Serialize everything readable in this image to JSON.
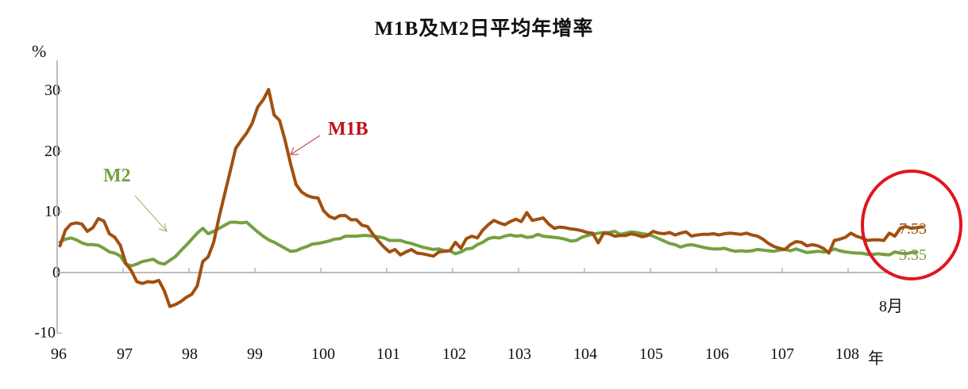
{
  "title": "M1B及M2日平均年增率",
  "y_unit": "%",
  "x_unit": "年",
  "last_month_label": "8月",
  "colors": {
    "m1b": "#A0500F",
    "m2": "#76A040",
    "m1b_label": "#C0101A",
    "m2_label": "#76A040",
    "axis": "#A6A6A6",
    "highlight_circle": "#E0151F"
  },
  "annotations": {
    "m1b_label": "M1B",
    "m2_label": "M2",
    "m1b_end_value": "7.53",
    "m2_end_value": "3.35"
  },
  "chart_data": {
    "type": "line",
    "title": "M1B及M2日平均年增率",
    "xlabel": "年",
    "ylabel": "%",
    "ylim": [
      -10,
      35
    ],
    "yticks": [
      -10,
      0,
      10,
      20,
      30
    ],
    "xticks": [
      "96",
      "97",
      "98",
      "99",
      "100",
      "101",
      "102",
      "103",
      "104",
      "105",
      "106",
      "107",
      "108"
    ],
    "x_range": "96年1月 - 108年8月 (monthly)",
    "grid": false,
    "legend": "inline labels with arrows",
    "series": [
      {
        "name": "M1B",
        "values": [
          4.4,
          7.0,
          8.0,
          8.2,
          8.0,
          6.8,
          7.4,
          8.9,
          8.5,
          6.4,
          5.8,
          4.5,
          1.5,
          0.3,
          -1.5,
          -1.8,
          -1.5,
          -1.6,
          -1.3,
          -3.0,
          -5.6,
          -5.3,
          -4.8,
          -4.1,
          -3.6,
          -2.2,
          1.8,
          2.6,
          5.0,
          9.2,
          13.0,
          16.7,
          20.5,
          21.8,
          23.0,
          24.6,
          27.3,
          28.5,
          30.2,
          26.0,
          25.1,
          21.8,
          17.9,
          14.5,
          13.3,
          12.7,
          12.4,
          12.3,
          10.2,
          9.3,
          8.9,
          9.4,
          9.4,
          8.7,
          8.7,
          7.8,
          7.6,
          6.3,
          5.2,
          4.2,
          3.4,
          3.8,
          2.9,
          3.4,
          3.8,
          3.2,
          3.1,
          2.9,
          2.7,
          3.4,
          3.5,
          3.6,
          5.0,
          4.0,
          5.6,
          6.0,
          5.7,
          7.0,
          7.9,
          8.6,
          8.2,
          7.9,
          8.4,
          8.8,
          8.4,
          9.9,
          8.6,
          8.8,
          9.0,
          8.0,
          7.3,
          7.5,
          7.4,
          7.2,
          7.1,
          6.9,
          6.6,
          6.5,
          4.9,
          6.5,
          6.4,
          6.0,
          6.1,
          6.1,
          6.4,
          6.2,
          5.9,
          6.1,
          6.8,
          6.5,
          6.4,
          6.6,
          6.2,
          6.5,
          6.7,
          6.0,
          6.2,
          6.3,
          6.3,
          6.4,
          6.2,
          6.4,
          6.5,
          6.4,
          6.3,
          6.5,
          6.2,
          6.0,
          5.5,
          4.8,
          4.3,
          4.0,
          3.8,
          4.6,
          5.1,
          5.0,
          4.4,
          4.6,
          4.4,
          4.0,
          3.2,
          5.3,
          5.5,
          5.8,
          6.5,
          6.0,
          5.7,
          5.3,
          5.4,
          5.4,
          5.3,
          6.5,
          6.0,
          7.3,
          7.6,
          7.3,
          7.4,
          7.53
        ]
      },
      {
        "name": "M2",
        "values": [
          5.0,
          5.5,
          5.7,
          5.4,
          4.9,
          4.6,
          4.6,
          4.5,
          4.0,
          3.4,
          3.2,
          2.7,
          1.4,
          1.1,
          1.4,
          1.8,
          2.0,
          2.2,
          1.6,
          1.4,
          2.0,
          2.6,
          3.6,
          4.5,
          5.5,
          6.5,
          7.3,
          6.4,
          6.8,
          7.3,
          7.8,
          8.3,
          8.3,
          8.2,
          8.3,
          7.5,
          6.7,
          6.0,
          5.4,
          5.0,
          4.5,
          4.0,
          3.5,
          3.6,
          4.0,
          4.3,
          4.7,
          4.8,
          5.0,
          5.2,
          5.5,
          5.6,
          6.0,
          6.0,
          6.0,
          6.1,
          6.1,
          6.0,
          5.9,
          5.7,
          5.3,
          5.3,
          5.3,
          5.0,
          4.8,
          4.5,
          4.2,
          4.0,
          3.8,
          3.9,
          3.6,
          3.6,
          3.1,
          3.4,
          3.9,
          4.0,
          4.6,
          5.0,
          5.6,
          5.8,
          5.7,
          6.0,
          6.2,
          6.0,
          6.1,
          5.8,
          5.9,
          6.3,
          6.0,
          5.9,
          5.8,
          5.7,
          5.5,
          5.2,
          5.3,
          5.8,
          6.1,
          6.3,
          6.5,
          6.6,
          6.6,
          6.8,
          6.3,
          6.5,
          6.7,
          6.6,
          6.4,
          6.3,
          6.0,
          5.6,
          5.2,
          4.8,
          4.6,
          4.2,
          4.5,
          4.6,
          4.4,
          4.2,
          4.0,
          3.9,
          3.9,
          4.0,
          3.7,
          3.5,
          3.6,
          3.5,
          3.6,
          3.8,
          3.7,
          3.6,
          3.5,
          3.7,
          3.8,
          3.6,
          3.9,
          3.6,
          3.3,
          3.4,
          3.5,
          3.4,
          3.5,
          3.9,
          3.6,
          3.4,
          3.3,
          3.2,
          3.2,
          3.0,
          3.0,
          3.1,
          3.0,
          2.9,
          3.4,
          3.2,
          3.1,
          3.3,
          3.35
        ]
      }
    ]
  }
}
